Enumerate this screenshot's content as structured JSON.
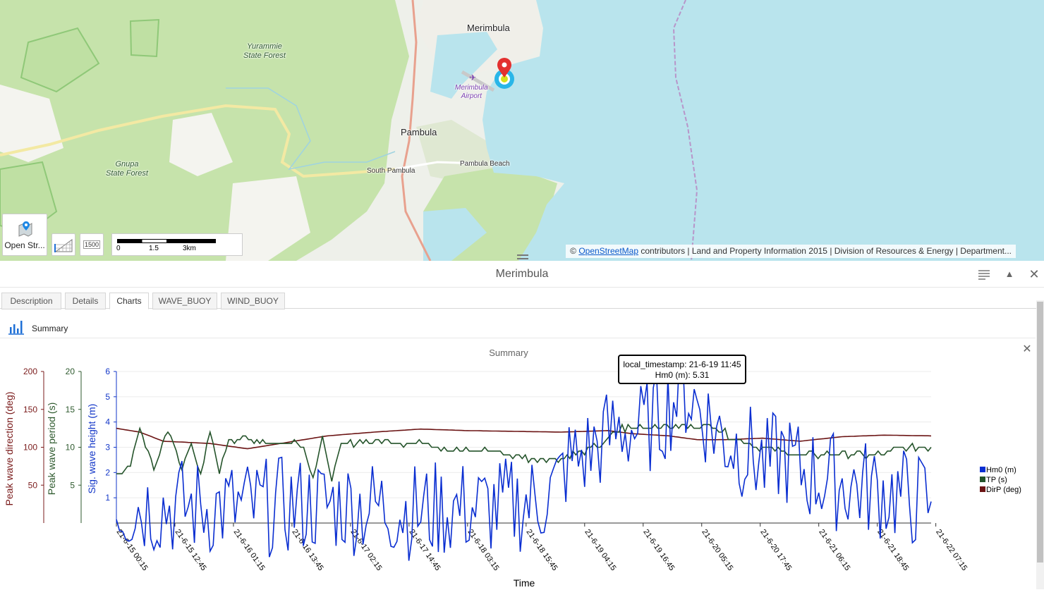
{
  "map": {
    "labels": {
      "merimbula": "Merimbula",
      "pambula": "Pambula",
      "south_pambula": "South Pambula",
      "pambula_beach": "Pambula Beach",
      "yurammie": "Yurammie\nState Forest",
      "gnupa": "Gnupa\nState Forest",
      "airport": "Merimbula\nAirport"
    },
    "open_street_button": "Open Str...",
    "scale_button": "1500",
    "scalebar": {
      "tick0": "0",
      "tick1": "1.5",
      "tick2": "3km"
    },
    "attribution": {
      "prefix": "©",
      "link": "OpenStreetMap",
      "suffix": "contributors | Land and Property Information 2015 | Division of Resources & Energy | Department..."
    },
    "colors": {
      "sea": "#b9e4ed",
      "forest": "#c8e5ae",
      "land": "#eef0ea",
      "marker": "#e3302f",
      "buoy": "#29b6e8"
    }
  },
  "panel": {
    "title": "Merimbula",
    "tabs": [
      {
        "label": "Description",
        "active": false
      },
      {
        "label": "Details",
        "active": false
      },
      {
        "label": "Charts",
        "active": true
      },
      {
        "label": "WAVE_BUOY",
        "active": false
      },
      {
        "label": "WIND_BUOY",
        "active": false
      }
    ],
    "summary_label": "Summary",
    "chart_title": "Summary"
  },
  "tooltip": {
    "line1": "local_timestamp: 21-6-19 11:45",
    "line2": "Hm0 (m): 5.31"
  },
  "chart_data": {
    "type": "line",
    "title": "Summary",
    "xlabel": "Time",
    "x_tick_labels": [
      "21-6-15 00:15",
      "21-6-15 12:45",
      "21-6-16 01:15",
      "21-6-16 13:45",
      "21-6-17 02:15",
      "21-6-17 14:45",
      "21-6-18 03:15",
      "21-6-18 15:45",
      "21-6-19 04:15",
      "21-6-19 16:45",
      "21-6-20 05:15",
      "21-6-20 17:45",
      "21-6-21 06:15",
      "21-6-21 18:45",
      "21-6-22 07:15"
    ],
    "x_range_hours": [
      0,
      174
    ],
    "axes": [
      {
        "label": "Peak wave direction (deg)",
        "color": "#7a1b1b",
        "range": [
          0,
          200
        ],
        "ticks": [
          "50",
          "100",
          "150",
          "200"
        ]
      },
      {
        "label": "Peak wave period (s)",
        "color": "#2e5a2e",
        "range": [
          0,
          20
        ],
        "ticks": [
          "5",
          "10",
          "15",
          "20"
        ]
      },
      {
        "label": "Sig. wave height (m)",
        "color": "#1236c8",
        "range": [
          0,
          6
        ],
        "ticks": [
          "1",
          "2",
          "3",
          "4",
          "5",
          "6"
        ]
      }
    ],
    "legend": "right",
    "series": [
      {
        "name": "Hm0 (m)",
        "color": "#0a2ed1",
        "axis": 2,
        "points": [
          [
            0,
            0.7
          ],
          [
            10,
            0.65
          ],
          [
            20,
            0.62
          ],
          [
            30,
            0.6
          ],
          [
            38,
            0.7
          ],
          [
            45,
            0.73
          ],
          [
            52,
            0.68
          ],
          [
            58,
            0.6
          ],
          [
            65,
            0.43
          ],
          [
            70,
            0.55
          ],
          [
            80,
            0.6
          ],
          [
            85,
            0.72
          ],
          [
            90,
            0.9
          ],
          [
            94,
            1.4
          ],
          [
            96,
            2.3
          ],
          [
            100,
            2.7
          ],
          [
            104,
            3.3
          ],
          [
            108,
            3.8
          ],
          [
            112,
            3.65
          ],
          [
            116,
            4.2
          ],
          [
            119,
            4.9
          ],
          [
            121,
            5.31
          ],
          [
            124,
            4.7
          ],
          [
            127,
            3.9
          ],
          [
            130,
            3.3
          ],
          [
            133,
            3.0
          ],
          [
            136,
            2.7
          ],
          [
            139,
            2.2
          ],
          [
            142,
            2.8
          ],
          [
            145,
            2.2
          ],
          [
            150,
            1.8
          ],
          [
            155,
            1.6
          ],
          [
            160,
            1.4
          ],
          [
            165,
            1.2
          ],
          [
            170,
            0.95
          ],
          [
            174,
            0.85
          ]
        ]
      },
      {
        "name": "TP (s)",
        "color": "#24532a",
        "axis": 1,
        "points": [
          [
            0,
            6.5
          ],
          [
            3,
            7.5
          ],
          [
            5,
            12.5
          ],
          [
            8,
            7
          ],
          [
            11,
            12.5
          ],
          [
            14,
            7
          ],
          [
            16,
            11
          ],
          [
            18,
            6
          ],
          [
            20,
            12
          ],
          [
            22,
            7
          ],
          [
            24,
            11
          ],
          [
            27,
            11
          ],
          [
            30,
            11
          ],
          [
            35,
            10.5
          ],
          [
            38,
            11
          ],
          [
            40,
            10
          ],
          [
            42,
            6
          ],
          [
            44,
            11
          ],
          [
            46,
            6
          ],
          [
            48,
            10
          ],
          [
            52,
            10.8
          ],
          [
            58,
            10.8
          ],
          [
            62,
            10.5
          ],
          [
            66,
            10.8
          ],
          [
            72,
            9.5
          ],
          [
            80,
            9.5
          ],
          [
            88,
            8.5
          ],
          [
            95,
            8.5
          ],
          [
            100,
            9.5
          ],
          [
            104,
            10.5
          ],
          [
            108,
            12.5
          ],
          [
            115,
            12.8
          ],
          [
            122,
            12.8
          ],
          [
            128,
            12.8
          ],
          [
            132,
            11
          ],
          [
            138,
            10
          ],
          [
            146,
            9
          ],
          [
            155,
            9
          ],
          [
            162,
            9
          ],
          [
            170,
            10
          ],
          [
            174,
            10
          ]
        ]
      },
      {
        "name": "DirP (deg)",
        "color": "#6b1414",
        "axis": 0,
        "points": [
          [
            0,
            125
          ],
          [
            5,
            120
          ],
          [
            10,
            108
          ],
          [
            20,
            105
          ],
          [
            28,
            98
          ],
          [
            35,
            105
          ],
          [
            45,
            115
          ],
          [
            55,
            120
          ],
          [
            65,
            124
          ],
          [
            75,
            122
          ],
          [
            85,
            121
          ],
          [
            95,
            120
          ],
          [
            105,
            122
          ],
          [
            110,
            118
          ],
          [
            118,
            115
          ],
          [
            124,
            110
          ],
          [
            130,
            110
          ],
          [
            138,
            112
          ],
          [
            146,
            108
          ],
          [
            155,
            114
          ],
          [
            164,
            116
          ],
          [
            174,
            115
          ]
        ]
      }
    ]
  }
}
